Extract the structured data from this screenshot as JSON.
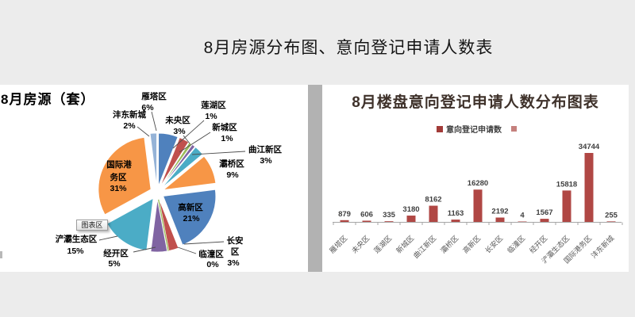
{
  "page": {
    "title": "8月房源分布图、意向登记申请人数表"
  },
  "pie_panel": {
    "title": "8月房源（套）",
    "tooltip": "图表区"
  },
  "bar_panel": {
    "title": "8月楼盘意向登记申请人数分布图表",
    "legend_label": "意向登记申请数"
  },
  "chart_data": [
    {
      "type": "pie",
      "title": "8月房源（套）",
      "categories": [
        "雁塔区",
        "未央区",
        "莲湖区",
        "新城区",
        "曲江新区",
        "灞桥区",
        "高新区",
        "长安区",
        "临潼区",
        "经开区",
        "浐灞生态区",
        "国际港务区",
        "沣东新城"
      ],
      "values": [
        6,
        3,
        1,
        1,
        3,
        9,
        21,
        3,
        0,
        5,
        15,
        31,
        2
      ],
      "unit": "percent",
      "exploded": true,
      "start_angle_deg": -90,
      "direction": "clockwise",
      "colors": [
        "#4F81BD",
        "#C0504D",
        "#9BBB59",
        "#8064A2",
        "#4BACC6",
        "#F79646",
        "#4F81BD",
        "#C0504D",
        "#9BBB59",
        "#8064A2",
        "#4BACC6",
        "#F79646",
        "#95B3D7"
      ],
      "tooltip_text": "图表区"
    },
    {
      "type": "bar",
      "title": "8月楼盘意向登记申请人数分布图表",
      "legend": [
        "意向登记申请数"
      ],
      "categories": [
        "雁塔区",
        "未央区",
        "莲湖区",
        "新城区",
        "曲江新区",
        "灞桥区",
        "高新区",
        "长安区",
        "临潼区",
        "经开区",
        "浐灞生态区",
        "国际港务区",
        "沣东新城"
      ],
      "values": [
        879,
        606,
        335,
        3180,
        8162,
        1163,
        16280,
        2192,
        4,
        1567,
        15818,
        34744,
        255
      ],
      "bar_color": "#b04744",
      "ylim": [
        0,
        34744
      ],
      "grid": false,
      "legend_position": "top"
    }
  ]
}
